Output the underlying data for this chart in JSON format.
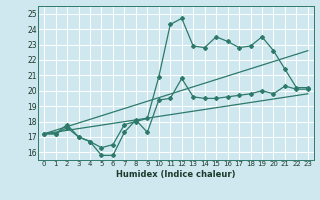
{
  "title": "",
  "xlabel": "Humidex (Indice chaleur)",
  "bg_color": "#cfe8f0",
  "line_color": "#2d7a6a",
  "xlim": [
    -0.5,
    23.5
  ],
  "ylim": [
    15.5,
    25.5
  ],
  "yticks": [
    16,
    17,
    18,
    19,
    20,
    21,
    22,
    23,
    24,
    25
  ],
  "xticks": [
    0,
    1,
    2,
    3,
    4,
    5,
    6,
    7,
    8,
    9,
    10,
    11,
    12,
    13,
    14,
    15,
    16,
    17,
    18,
    19,
    20,
    21,
    22,
    23
  ],
  "series_lower_wavy": {
    "x": [
      0,
      1,
      2,
      3,
      4,
      5,
      6,
      7,
      8,
      9,
      10,
      11,
      12,
      13,
      14,
      15,
      16,
      17,
      18,
      19,
      20,
      21,
      22,
      23
    ],
    "y": [
      17.2,
      17.2,
      17.6,
      17.0,
      16.7,
      15.8,
      15.8,
      17.3,
      18.1,
      17.3,
      19.4,
      19.5,
      20.8,
      19.6,
      19.5,
      19.5,
      19.6,
      19.7,
      19.8,
      20.0,
      19.8,
      20.3,
      20.1,
      20.1
    ]
  },
  "series_upper_spiky": {
    "x": [
      0,
      1,
      2,
      3,
      4,
      5,
      6,
      7,
      8,
      9,
      10,
      11,
      12,
      13,
      14,
      15,
      16,
      17,
      18,
      19,
      20,
      21,
      22,
      23
    ],
    "y": [
      17.2,
      17.2,
      17.8,
      17.0,
      16.7,
      16.3,
      16.5,
      17.8,
      18.0,
      18.2,
      20.9,
      24.3,
      24.7,
      22.9,
      22.8,
      23.5,
      23.2,
      22.8,
      22.9,
      23.5,
      22.6,
      21.4,
      20.2,
      20.2
    ]
  },
  "series_line_upper": {
    "x": [
      0,
      23
    ],
    "y": [
      17.2,
      22.6
    ]
  },
  "series_line_lower": {
    "x": [
      0,
      23
    ],
    "y": [
      17.2,
      19.8
    ]
  }
}
